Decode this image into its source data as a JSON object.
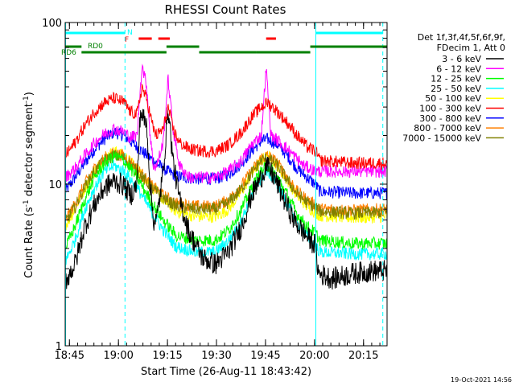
{
  "chart_data": {
    "type": "line",
    "title": "RHESSI Count Rates",
    "xlabel": "Start Time (26-Aug-11 18:43:42)",
    "ylabel_parts": [
      "Count Rate (s",
      "-1",
      " detector segment",
      "-1",
      ")"
    ],
    "y_scale": "log",
    "ylim": [
      1,
      100
    ],
    "x_range_minutes": [
      0,
      98.5
    ],
    "x_ticks": [
      {
        "label": "18:45",
        "minute": 1.3
      },
      {
        "label": "19:00",
        "minute": 16.3
      },
      {
        "label": "19:15",
        "minute": 31.3
      },
      {
        "label": "19:30",
        "minute": 46.3
      },
      {
        "label": "19:45",
        "minute": 61.3
      },
      {
        "label": "20:00",
        "minute": 76.3
      },
      {
        "label": "20:15",
        "minute": 91.3
      }
    ],
    "y_tick_labels": [
      "1",
      "10",
      "100"
    ],
    "legend_header": [
      "Det 1f,3f,4f,5f,6f,9f,",
      "FDecim 1, Att 0"
    ],
    "series": [
      {
        "name": "3 - 6 keV",
        "color": "#000000",
        "profile": [
          [
            0,
            2.5
          ],
          [
            3,
            3.2
          ],
          [
            6,
            5.5
          ],
          [
            9,
            7.5
          ],
          [
            12,
            9.5
          ],
          [
            15,
            10.5
          ],
          [
            18,
            9.8
          ],
          [
            20,
            8.5
          ],
          [
            22,
            10
          ],
          [
            23,
            28
          ],
          [
            25,
            23
          ],
          [
            26,
            10
          ],
          [
            27,
            6
          ],
          [
            28,
            6
          ],
          [
            30,
            12
          ],
          [
            31.5,
            30
          ],
          [
            33,
            14
          ],
          [
            35,
            8
          ],
          [
            38,
            5
          ],
          [
            42,
            3.5
          ],
          [
            46,
            3.2
          ],
          [
            50,
            3.8
          ],
          [
            54,
            5.5
          ],
          [
            57,
            8.5
          ],
          [
            60,
            11
          ],
          [
            61.5,
            13
          ],
          [
            64,
            11
          ],
          [
            67,
            8
          ],
          [
            70,
            6
          ],
          [
            73,
            5
          ],
          [
            75,
            4.5
          ],
          [
            76.5,
            4.2
          ],
          [
            77.5,
            2.8
          ],
          [
            82,
            2.6
          ],
          [
            88,
            2.8
          ],
          [
            94,
            2.9
          ],
          [
            98.5,
            2.9
          ]
        ]
      },
      {
        "name": "6 - 12 keV",
        "color": "#ff00ff",
        "profile": [
          [
            0,
            11
          ],
          [
            3,
            12.5
          ],
          [
            6,
            15
          ],
          [
            9,
            18
          ],
          [
            12,
            20.5
          ],
          [
            15,
            22
          ],
          [
            18,
            21
          ],
          [
            20,
            19.5
          ],
          [
            22,
            20
          ],
          [
            23.5,
            55
          ],
          [
            25,
            40
          ],
          [
            26,
            20
          ],
          [
            27,
            13
          ],
          [
            28,
            13
          ],
          [
            30,
            18
          ],
          [
            31.5,
            45
          ],
          [
            33,
            22
          ],
          [
            35,
            13
          ],
          [
            38,
            11
          ],
          [
            42,
            11
          ],
          [
            46,
            11
          ],
          [
            50,
            12
          ],
          [
            54,
            14
          ],
          [
            57,
            17.5
          ],
          [
            60,
            20
          ],
          [
            61.5,
            52
          ],
          [
            63,
            20
          ],
          [
            66,
            18
          ],
          [
            70,
            15
          ],
          [
            73,
            13
          ],
          [
            75,
            12.5
          ],
          [
            76.5,
            12
          ],
          [
            78,
            12
          ],
          [
            88,
            12
          ],
          [
            98.5,
            12
          ]
        ]
      },
      {
        "name": "12 - 25 keV",
        "color": "#00ff00",
        "profile": [
          [
            0,
            4
          ],
          [
            3,
            5.5
          ],
          [
            6,
            8
          ],
          [
            9,
            11
          ],
          [
            12,
            13.5
          ],
          [
            15,
            15
          ],
          [
            18,
            14
          ],
          [
            22,
            11
          ],
          [
            26,
            8
          ],
          [
            30,
            6
          ],
          [
            34,
            4.8
          ],
          [
            40,
            4.5
          ],
          [
            46,
            4.5
          ],
          [
            50,
            5.2
          ],
          [
            54,
            7
          ],
          [
            57,
            9.5
          ],
          [
            60,
            12
          ],
          [
            62,
            13
          ],
          [
            65,
            11
          ],
          [
            68,
            8.5
          ],
          [
            71,
            6.5
          ],
          [
            74,
            5.5
          ],
          [
            76.5,
            5
          ],
          [
            78,
            4.5
          ],
          [
            88,
            4.3
          ],
          [
            98.5,
            4.3
          ]
        ]
      },
      {
        "name": "25 - 50 keV",
        "color": "#00ffff",
        "profile": [
          [
            0,
            3.3
          ],
          [
            3,
            4.5
          ],
          [
            6,
            7
          ],
          [
            9,
            9.5
          ],
          [
            12,
            12
          ],
          [
            15,
            13
          ],
          [
            18,
            12
          ],
          [
            22,
            9.5
          ],
          [
            26,
            7
          ],
          [
            30,
            5.2
          ],
          [
            34,
            4.1
          ],
          [
            40,
            3.8
          ],
          [
            46,
            3.8
          ],
          [
            50,
            4.5
          ],
          [
            54,
            6
          ],
          [
            57,
            8.5
          ],
          [
            60,
            11
          ],
          [
            62,
            12
          ],
          [
            65,
            10
          ],
          [
            68,
            7.5
          ],
          [
            71,
            5.8
          ],
          [
            74,
            4.8
          ],
          [
            76.5,
            4.2
          ],
          [
            78,
            3.8
          ],
          [
            88,
            3.7
          ],
          [
            98.5,
            3.7
          ]
        ]
      },
      {
        "name": "50 - 100 keV",
        "color": "#ffff00",
        "profile": [
          [
            0,
            5.5
          ],
          [
            3,
            7
          ],
          [
            6,
            9.5
          ],
          [
            9,
            12
          ],
          [
            12,
            14.5
          ],
          [
            15,
            16
          ],
          [
            18,
            15
          ],
          [
            22,
            12.5
          ],
          [
            26,
            10
          ],
          [
            30,
            8
          ],
          [
            34,
            6.8
          ],
          [
            40,
            6.3
          ],
          [
            46,
            6.3
          ],
          [
            50,
            7
          ],
          [
            54,
            9
          ],
          [
            57,
            11.5
          ],
          [
            60,
            14
          ],
          [
            62,
            15
          ],
          [
            65,
            13
          ],
          [
            68,
            10.5
          ],
          [
            71,
            8.5
          ],
          [
            74,
            7.3
          ],
          [
            76.5,
            6.7
          ],
          [
            78,
            6.4
          ],
          [
            88,
            6.2
          ],
          [
            98.5,
            6.3
          ]
        ]
      },
      {
        "name": "100 - 300 keV",
        "color": "#ff0000",
        "profile": [
          [
            0,
            15
          ],
          [
            3,
            18
          ],
          [
            6,
            23
          ],
          [
            9,
            28
          ],
          [
            12,
            32
          ],
          [
            15,
            34
          ],
          [
            18,
            32
          ],
          [
            20,
            28
          ],
          [
            22,
            27
          ],
          [
            23.5,
            40
          ],
          [
            25,
            33
          ],
          [
            27,
            22
          ],
          [
            28,
            20
          ],
          [
            30,
            22
          ],
          [
            31.5,
            30
          ],
          [
            33,
            22
          ],
          [
            35,
            18
          ],
          [
            38,
            16.5
          ],
          [
            42,
            16
          ],
          [
            46,
            16
          ],
          [
            50,
            17.5
          ],
          [
            54,
            21
          ],
          [
            57,
            26
          ],
          [
            60,
            30
          ],
          [
            62,
            32
          ],
          [
            65,
            28
          ],
          [
            68,
            24
          ],
          [
            71,
            20
          ],
          [
            74,
            17
          ],
          [
            76.5,
            16
          ],
          [
            78,
            14
          ],
          [
            88,
            13.5
          ],
          [
            98.5,
            13.5
          ]
        ]
      },
      {
        "name": "300 - 800 keV",
        "color": "#0000ff",
        "profile": [
          [
            0,
            9
          ],
          [
            3,
            11
          ],
          [
            6,
            13.5
          ],
          [
            9,
            16.5
          ],
          [
            12,
            19
          ],
          [
            15,
            21
          ],
          [
            18,
            20
          ],
          [
            22,
            17
          ],
          [
            26,
            14.5
          ],
          [
            30,
            12.5
          ],
          [
            34,
            11.2
          ],
          [
            40,
            10.8
          ],
          [
            46,
            10.8
          ],
          [
            50,
            11.5
          ],
          [
            54,
            13.5
          ],
          [
            57,
            16
          ],
          [
            60,
            18.5
          ],
          [
            62,
            19
          ],
          [
            65,
            17.5
          ],
          [
            68,
            15
          ],
          [
            71,
            12.5
          ],
          [
            74,
            11
          ],
          [
            76.5,
            10
          ],
          [
            78,
            9
          ],
          [
            88,
            8.8
          ],
          [
            98.5,
            8.8
          ]
        ]
      },
      {
        "name": "800 - 7000 keV",
        "color": "#ff8000",
        "profile": [
          [
            0,
            6
          ],
          [
            3,
            7.5
          ],
          [
            6,
            10
          ],
          [
            9,
            12.5
          ],
          [
            12,
            14.5
          ],
          [
            15,
            15.5
          ],
          [
            18,
            15
          ],
          [
            22,
            12.5
          ],
          [
            26,
            10
          ],
          [
            30,
            8.5
          ],
          [
            34,
            7.6
          ],
          [
            40,
            7.3
          ],
          [
            46,
            7.3
          ],
          [
            50,
            8
          ],
          [
            54,
            9.8
          ],
          [
            57,
            12
          ],
          [
            60,
            14.5
          ],
          [
            62,
            15
          ],
          [
            65,
            13.5
          ],
          [
            68,
            11
          ],
          [
            71,
            9
          ],
          [
            74,
            8
          ],
          [
            76.5,
            7.5
          ],
          [
            78,
            7
          ],
          [
            88,
            6.9
          ],
          [
            98.5,
            7
          ]
        ]
      },
      {
        "name": "7000 - 15000 keV",
        "color": "#808000",
        "profile": [
          [
            0,
            5.8
          ],
          [
            3,
            7.2
          ],
          [
            6,
            9.6
          ],
          [
            9,
            12
          ],
          [
            12,
            14
          ],
          [
            15,
            15
          ],
          [
            18,
            14.5
          ],
          [
            22,
            12
          ],
          [
            26,
            9.7
          ],
          [
            30,
            8.2
          ],
          [
            34,
            7.3
          ],
          [
            40,
            7
          ],
          [
            46,
            7
          ],
          [
            50,
            7.7
          ],
          [
            54,
            9.4
          ],
          [
            57,
            11.6
          ],
          [
            60,
            14
          ],
          [
            62,
            14.5
          ],
          [
            65,
            13
          ],
          [
            68,
            10.6
          ],
          [
            71,
            8.7
          ],
          [
            74,
            7.7
          ],
          [
            76.5,
            7.2
          ],
          [
            78,
            6.8
          ],
          [
            88,
            6.6
          ],
          [
            98.5,
            6.7
          ]
        ]
      }
    ],
    "markers": {
      "cyan_vertical_solid_minutes": [
        0,
        76.7
      ],
      "cyan_vertical_dashed_minutes": [
        18.3,
        97.2
      ],
      "cyan_bars": [
        [
          0,
          18.3
        ],
        [
          76.7,
          97.2
        ]
      ],
      "red_bars": [
        [
          22.5,
          26.5
        ],
        [
          28.5,
          32
        ],
        [
          61.5,
          64.5
        ]
      ],
      "green_bars_upper": [
        [
          0,
          5
        ],
        [
          31,
          41
        ],
        [
          75,
          98.5
        ]
      ],
      "green_bars_lower": [
        [
          5,
          31
        ],
        [
          41,
          58.5
        ],
        [
          58.5,
          75
        ]
      ],
      "labels": {
        "N": "N",
        "F": "F",
        "RD0": "RD0",
        "RD6": "RD6"
      }
    }
  },
  "timestamp": "19-Oct-2021 14:56"
}
